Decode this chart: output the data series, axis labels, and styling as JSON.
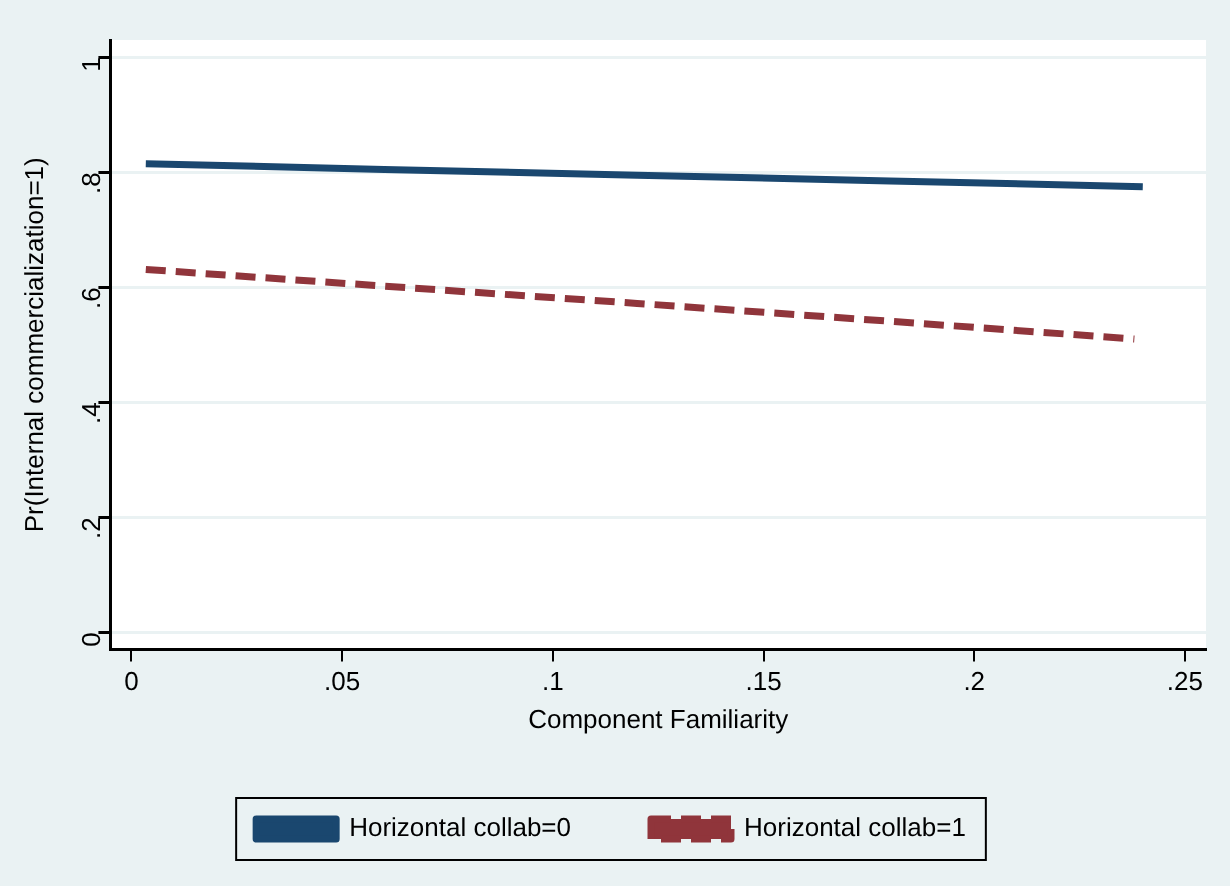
{
  "chart_data": {
    "type": "line",
    "xlabel": "Component Familiarity",
    "ylabel": "Pr(Internal commercialization=1)",
    "xlim": [
      -0.005,
      0.255
    ],
    "xticks": [
      {
        "value": 0,
        "label": "0"
      },
      {
        "value": 0.05,
        "label": ".05"
      },
      {
        "value": 0.1,
        "label": ".1"
      },
      {
        "value": 0.15,
        "label": ".15"
      },
      {
        "value": 0.2,
        "label": ".2"
      },
      {
        "value": 0.25,
        "label": ".25"
      }
    ],
    "ylim": [
      -0.03,
      1.03
    ],
    "yticks": [
      {
        "value": 0,
        "label": "0"
      },
      {
        "value": 0.2,
        "label": ".2"
      },
      {
        "value": 0.4,
        "label": ".4"
      },
      {
        "value": 0.6,
        "label": ".6"
      },
      {
        "value": 0.8,
        "label": ".8"
      },
      {
        "value": 1,
        "label": "1"
      }
    ],
    "grid": "y",
    "legend": "bottom",
    "marker": "none",
    "series": [
      {
        "name": "Horizontal collab=0",
        "color": "#1a476f",
        "line_style": "solid",
        "x": [
          0.0034,
          0.06,
          0.12,
          0.18,
          0.24
        ],
        "values": [
          0.815,
          0.805,
          0.795,
          0.785,
          0.775
        ]
      },
      {
        "name": "Horizontal collab=1",
        "color": "#90353b",
        "line_style": "dashed",
        "x": [
          0.0034,
          0.06,
          0.12,
          0.18,
          0.238
        ],
        "values": [
          0.631,
          0.602,
          0.572,
          0.541,
          0.51
        ]
      }
    ]
  }
}
